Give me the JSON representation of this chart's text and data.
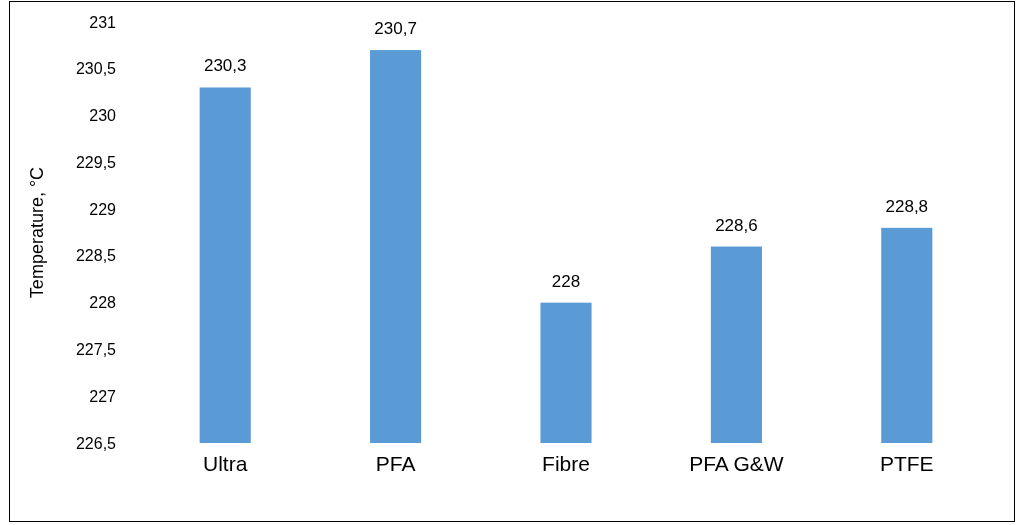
{
  "chart_data": {
    "type": "bar",
    "ylabel": "Temperature, °C",
    "categories": [
      "Ultra",
      "PFA",
      "Fibre",
      "PFA G&W",
      "PTFE"
    ],
    "values": [
      230.3,
      230.7,
      228,
      228.6,
      228.8
    ],
    "value_labels": [
      "230,3",
      "230,7",
      "228",
      "228,6",
      "228,8"
    ],
    "color": "#5b9bd5",
    "ylim": [
      226.5,
      231
    ],
    "yticks": [
      {
        "value": 226.5,
        "label": "226,5"
      },
      227,
      {
        "value": 227.5,
        "label": "227,5"
      },
      228,
      {
        "value": 228.5,
        "label": "228,5"
      },
      229,
      {
        "value": 229.5,
        "label": "229,5"
      },
      230,
      {
        "value": 230.5,
        "label": "230,5"
      },
      231
    ],
    "grid": false
  }
}
